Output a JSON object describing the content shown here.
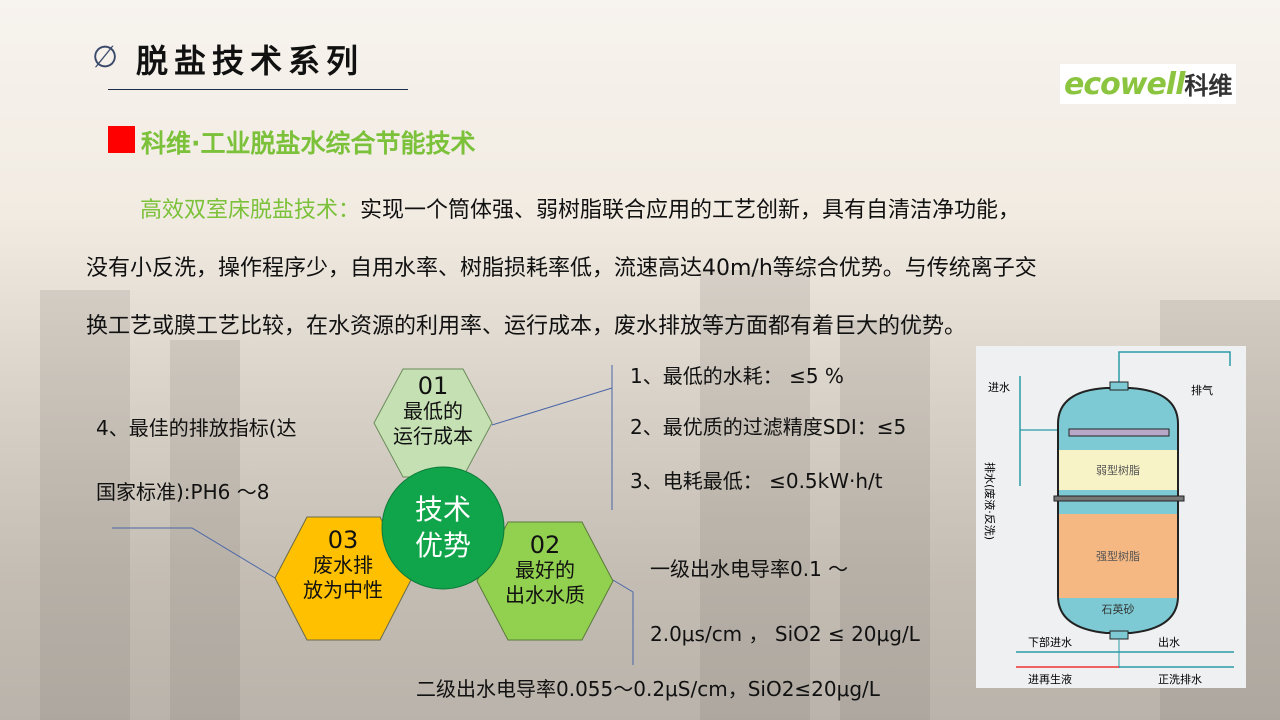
{
  "header": {
    "title": "脱盐技术系列",
    "title_icon": "empty-set-icon"
  },
  "logo": {
    "brand": "ecowell",
    "brand_cn": "科维",
    "color": "#8bc53f"
  },
  "section": {
    "title": "科维·工业脱盐水综合节能技术",
    "marker_color": "#ff0000",
    "title_color": "#7cc13a"
  },
  "intro": {
    "highlight": "高效双室床脱盐技术：",
    "line1": "实现一个筒体强、弱树脂联合应用的工艺创新，具有自清洁净功能，",
    "line2": "没有小反洗，操作程序少，自用水率、树脂损耗率低，流速高达40m/h等综合优势。与传统离子交",
    "line3": "换工艺或膜工艺比较，在水资源的利用率、运行成本，废水排放等方面都有着巨大的优势。"
  },
  "advantages": {
    "center": {
      "line1": "技术",
      "line2": "优势",
      "color": "#10a54a"
    },
    "hex1": {
      "num": "01",
      "line1": "最低的",
      "line2": "运行成本",
      "color": "#c5e0b3"
    },
    "hex2": {
      "num": "02",
      "line1": "最好的",
      "line2": "出水水质",
      "color": "#92d050"
    },
    "hex3": {
      "num": "03",
      "line1": "废水排",
      "line2": "放为中性",
      "color": "#ffc000"
    }
  },
  "details": {
    "item1": "1、最低的水耗： ≤5 %",
    "item2": "2、最优质的过滤精度SDI：≤5",
    "item3": "3、电耗最低： ≤0.5kW·h/t",
    "item4_line1": "4、最佳的排放指标(达",
    "item4_line2": "国家标准):PH6 ～8",
    "quality_line1": "一级出水电导率0.1 ～",
    "quality_line2": "2.0μs/cm ， SiO2 ≤ 20μg/L",
    "quality_line3": "二级出水电导率0.055～0.2μS/cm，SiO2≤20μg/L"
  },
  "diagram": {
    "inlet": "进水",
    "vent": "排气",
    "drain": "排水(废液·反洗)",
    "weak_resin": "弱型树脂",
    "strong_resin": "强型树脂",
    "quartz_sand": "石英砂",
    "bottom_inlet": "下部进水",
    "outlet": "出水",
    "regen_inlet": "进再生液",
    "rinse_drain": "正洗排水"
  }
}
